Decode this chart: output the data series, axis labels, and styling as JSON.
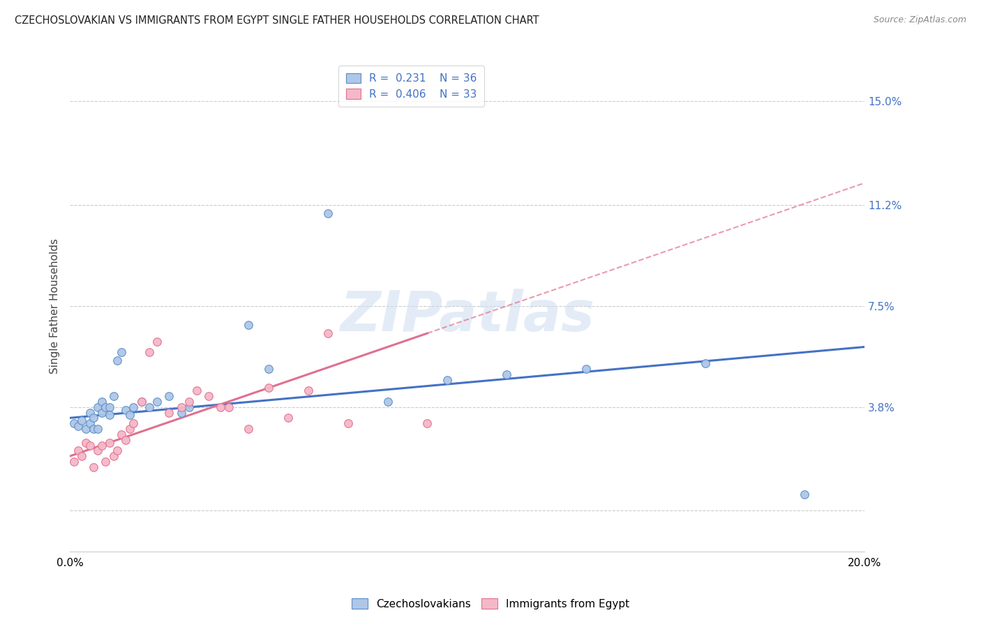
{
  "title": "CZECHOSLOVAKIAN VS IMMIGRANTS FROM EGYPT SINGLE FATHER HOUSEHOLDS CORRELATION CHART",
  "source": "Source: ZipAtlas.com",
  "ylabel_label": "Single Father Households",
  "xlim": [
    0.0,
    0.2
  ],
  "ylim": [
    -0.015,
    0.165
  ],
  "ytick_values": [
    0.0,
    0.038,
    0.075,
    0.112,
    0.15
  ],
  "series1_label": "Czechoslovakians",
  "series1_R": "0.231",
  "series1_N": "36",
  "series1_color": "#aec6e8",
  "series1_edge_color": "#5b8ec4",
  "series1_line_color": "#4472c4",
  "series2_label": "Immigrants from Egypt",
  "series2_R": "0.406",
  "series2_N": "33",
  "series2_color": "#f5b8c8",
  "series2_edge_color": "#e07090",
  "series2_line_color": "#e07090",
  "legend_R_color": "#4472c4",
  "watermark_text": "ZIPatlas",
  "series1_x": [
    0.001,
    0.002,
    0.003,
    0.004,
    0.005,
    0.005,
    0.006,
    0.006,
    0.007,
    0.007,
    0.008,
    0.008,
    0.009,
    0.01,
    0.01,
    0.011,
    0.012,
    0.013,
    0.014,
    0.015,
    0.016,
    0.018,
    0.02,
    0.022,
    0.025,
    0.028,
    0.03,
    0.045,
    0.05,
    0.065,
    0.08,
    0.095,
    0.11,
    0.13,
    0.16,
    0.185
  ],
  "series1_y": [
    0.032,
    0.031,
    0.033,
    0.03,
    0.036,
    0.032,
    0.03,
    0.034,
    0.038,
    0.03,
    0.036,
    0.04,
    0.038,
    0.038,
    0.035,
    0.042,
    0.055,
    0.058,
    0.037,
    0.035,
    0.038,
    0.04,
    0.038,
    0.04,
    0.042,
    0.036,
    0.038,
    0.068,
    0.052,
    0.109,
    0.04,
    0.048,
    0.05,
    0.052,
    0.054,
    0.006
  ],
  "series2_x": [
    0.001,
    0.002,
    0.003,
    0.004,
    0.005,
    0.006,
    0.007,
    0.008,
    0.009,
    0.01,
    0.011,
    0.012,
    0.013,
    0.014,
    0.015,
    0.016,
    0.018,
    0.02,
    0.022,
    0.025,
    0.028,
    0.03,
    0.032,
    0.035,
    0.038,
    0.04,
    0.045,
    0.05,
    0.055,
    0.06,
    0.065,
    0.07,
    0.09
  ],
  "series2_y": [
    0.018,
    0.022,
    0.02,
    0.025,
    0.024,
    0.016,
    0.022,
    0.024,
    0.018,
    0.025,
    0.02,
    0.022,
    0.028,
    0.026,
    0.03,
    0.032,
    0.04,
    0.058,
    0.062,
    0.036,
    0.038,
    0.04,
    0.044,
    0.042,
    0.038,
    0.038,
    0.03,
    0.045,
    0.034,
    0.044,
    0.065,
    0.032,
    0.032
  ]
}
